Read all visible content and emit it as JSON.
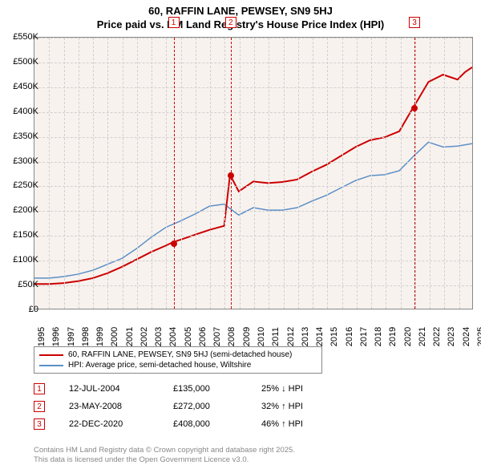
{
  "title": {
    "line1": "60, RAFFIN LANE, PEWSEY, SN9 5HJ",
    "line2": "Price paid vs. HM Land Registry's House Price Index (HPI)"
  },
  "chart": {
    "type": "line",
    "background_color": "#f8f2ee",
    "grid_color": "#d0d0d0",
    "ylim": [
      0,
      550000
    ],
    "ytick_step": 50000,
    "yticks": [
      "£0",
      "£50K",
      "£100K",
      "£150K",
      "£200K",
      "£250K",
      "£300K",
      "£350K",
      "£400K",
      "£450K",
      "£500K",
      "£550K"
    ],
    "xlim": [
      1995,
      2025
    ],
    "xticks": [
      "1995",
      "1996",
      "1997",
      "1998",
      "1999",
      "2000",
      "2001",
      "2002",
      "2003",
      "2004",
      "2005",
      "2006",
      "2007",
      "2008",
      "2009",
      "2010",
      "2011",
      "2012",
      "2013",
      "2014",
      "2015",
      "2016",
      "2017",
      "2018",
      "2019",
      "2020",
      "2021",
      "2022",
      "2023",
      "2024",
      "2025"
    ],
    "label_fontsize": 11,
    "series": {
      "property": {
        "color": "#cc0000",
        "width": 2,
        "points": [
          [
            1995,
            50000
          ],
          [
            1996,
            50000
          ],
          [
            1997,
            52000
          ],
          [
            1998,
            56000
          ],
          [
            1999,
            62000
          ],
          [
            2000,
            72000
          ],
          [
            2001,
            85000
          ],
          [
            2002,
            100000
          ],
          [
            2003,
            115000
          ],
          [
            2004,
            128000
          ],
          [
            2004.5,
            135000
          ],
          [
            2005,
            140000
          ],
          [
            2006,
            150000
          ],
          [
            2007,
            160000
          ],
          [
            2008,
            168000
          ],
          [
            2008.4,
            272000
          ],
          [
            2009,
            238000
          ],
          [
            2010,
            258000
          ],
          [
            2011,
            255000
          ],
          [
            2012,
            257000
          ],
          [
            2013,
            262000
          ],
          [
            2014,
            278000
          ],
          [
            2015,
            292000
          ],
          [
            2016,
            310000
          ],
          [
            2017,
            328000
          ],
          [
            2018,
            342000
          ],
          [
            2019,
            348000
          ],
          [
            2020,
            360000
          ],
          [
            2020.95,
            408000
          ],
          [
            2021,
            410000
          ],
          [
            2022,
            460000
          ],
          [
            2023,
            475000
          ],
          [
            2024,
            465000
          ],
          [
            2024.5,
            480000
          ],
          [
            2025,
            490000
          ]
        ]
      },
      "hpi": {
        "color": "#5b8fc7",
        "width": 1.5,
        "points": [
          [
            1995,
            62000
          ],
          [
            1996,
            62000
          ],
          [
            1997,
            65000
          ],
          [
            1998,
            70000
          ],
          [
            1999,
            78000
          ],
          [
            2000,
            90000
          ],
          [
            2001,
            102000
          ],
          [
            2002,
            122000
          ],
          [
            2003,
            145000
          ],
          [
            2004,
            165000
          ],
          [
            2005,
            178000
          ],
          [
            2006,
            192000
          ],
          [
            2007,
            208000
          ],
          [
            2008,
            212000
          ],
          [
            2009,
            190000
          ],
          [
            2010,
            205000
          ],
          [
            2011,
            200000
          ],
          [
            2012,
            200000
          ],
          [
            2013,
            205000
          ],
          [
            2014,
            218000
          ],
          [
            2015,
            230000
          ],
          [
            2016,
            245000
          ],
          [
            2017,
            260000
          ],
          [
            2018,
            270000
          ],
          [
            2019,
            272000
          ],
          [
            2020,
            280000
          ],
          [
            2021,
            310000
          ],
          [
            2022,
            338000
          ],
          [
            2023,
            328000
          ],
          [
            2024,
            330000
          ],
          [
            2025,
            335000
          ]
        ]
      }
    },
    "events": [
      {
        "num": "1",
        "x": 2004.5,
        "color": "#cc0000"
      },
      {
        "num": "2",
        "x": 2008.4,
        "color": "#cc0000"
      },
      {
        "num": "3",
        "x": 2020.95,
        "color": "#cc0000"
      }
    ],
    "sale_markers": [
      {
        "x": 2004.5,
        "y": 135000,
        "color": "#cc0000"
      },
      {
        "x": 2008.4,
        "y": 272000,
        "color": "#cc0000"
      },
      {
        "x": 2020.95,
        "y": 408000,
        "color": "#cc0000"
      }
    ]
  },
  "legend": {
    "items": [
      {
        "label": "60, RAFFIN LANE, PEWSEY, SN9 5HJ (semi-detached house)",
        "color": "#cc0000"
      },
      {
        "label": "HPI: Average price, semi-detached house, Wiltshire",
        "color": "#5b8fc7"
      }
    ]
  },
  "sales": [
    {
      "num": "1",
      "date": "12-JUL-2004",
      "price": "£135,000",
      "delta": "25% ↓ HPI"
    },
    {
      "num": "2",
      "date": "23-MAY-2008",
      "price": "£272,000",
      "delta": "32% ↑ HPI"
    },
    {
      "num": "3",
      "date": "22-DEC-2020",
      "price": "£408,000",
      "delta": "46% ↑ HPI"
    }
  ],
  "footer": {
    "line1": "Contains HM Land Registry data © Crown copyright and database right 2025.",
    "line2": "This data is licensed under the Open Government Licence v3.0."
  }
}
